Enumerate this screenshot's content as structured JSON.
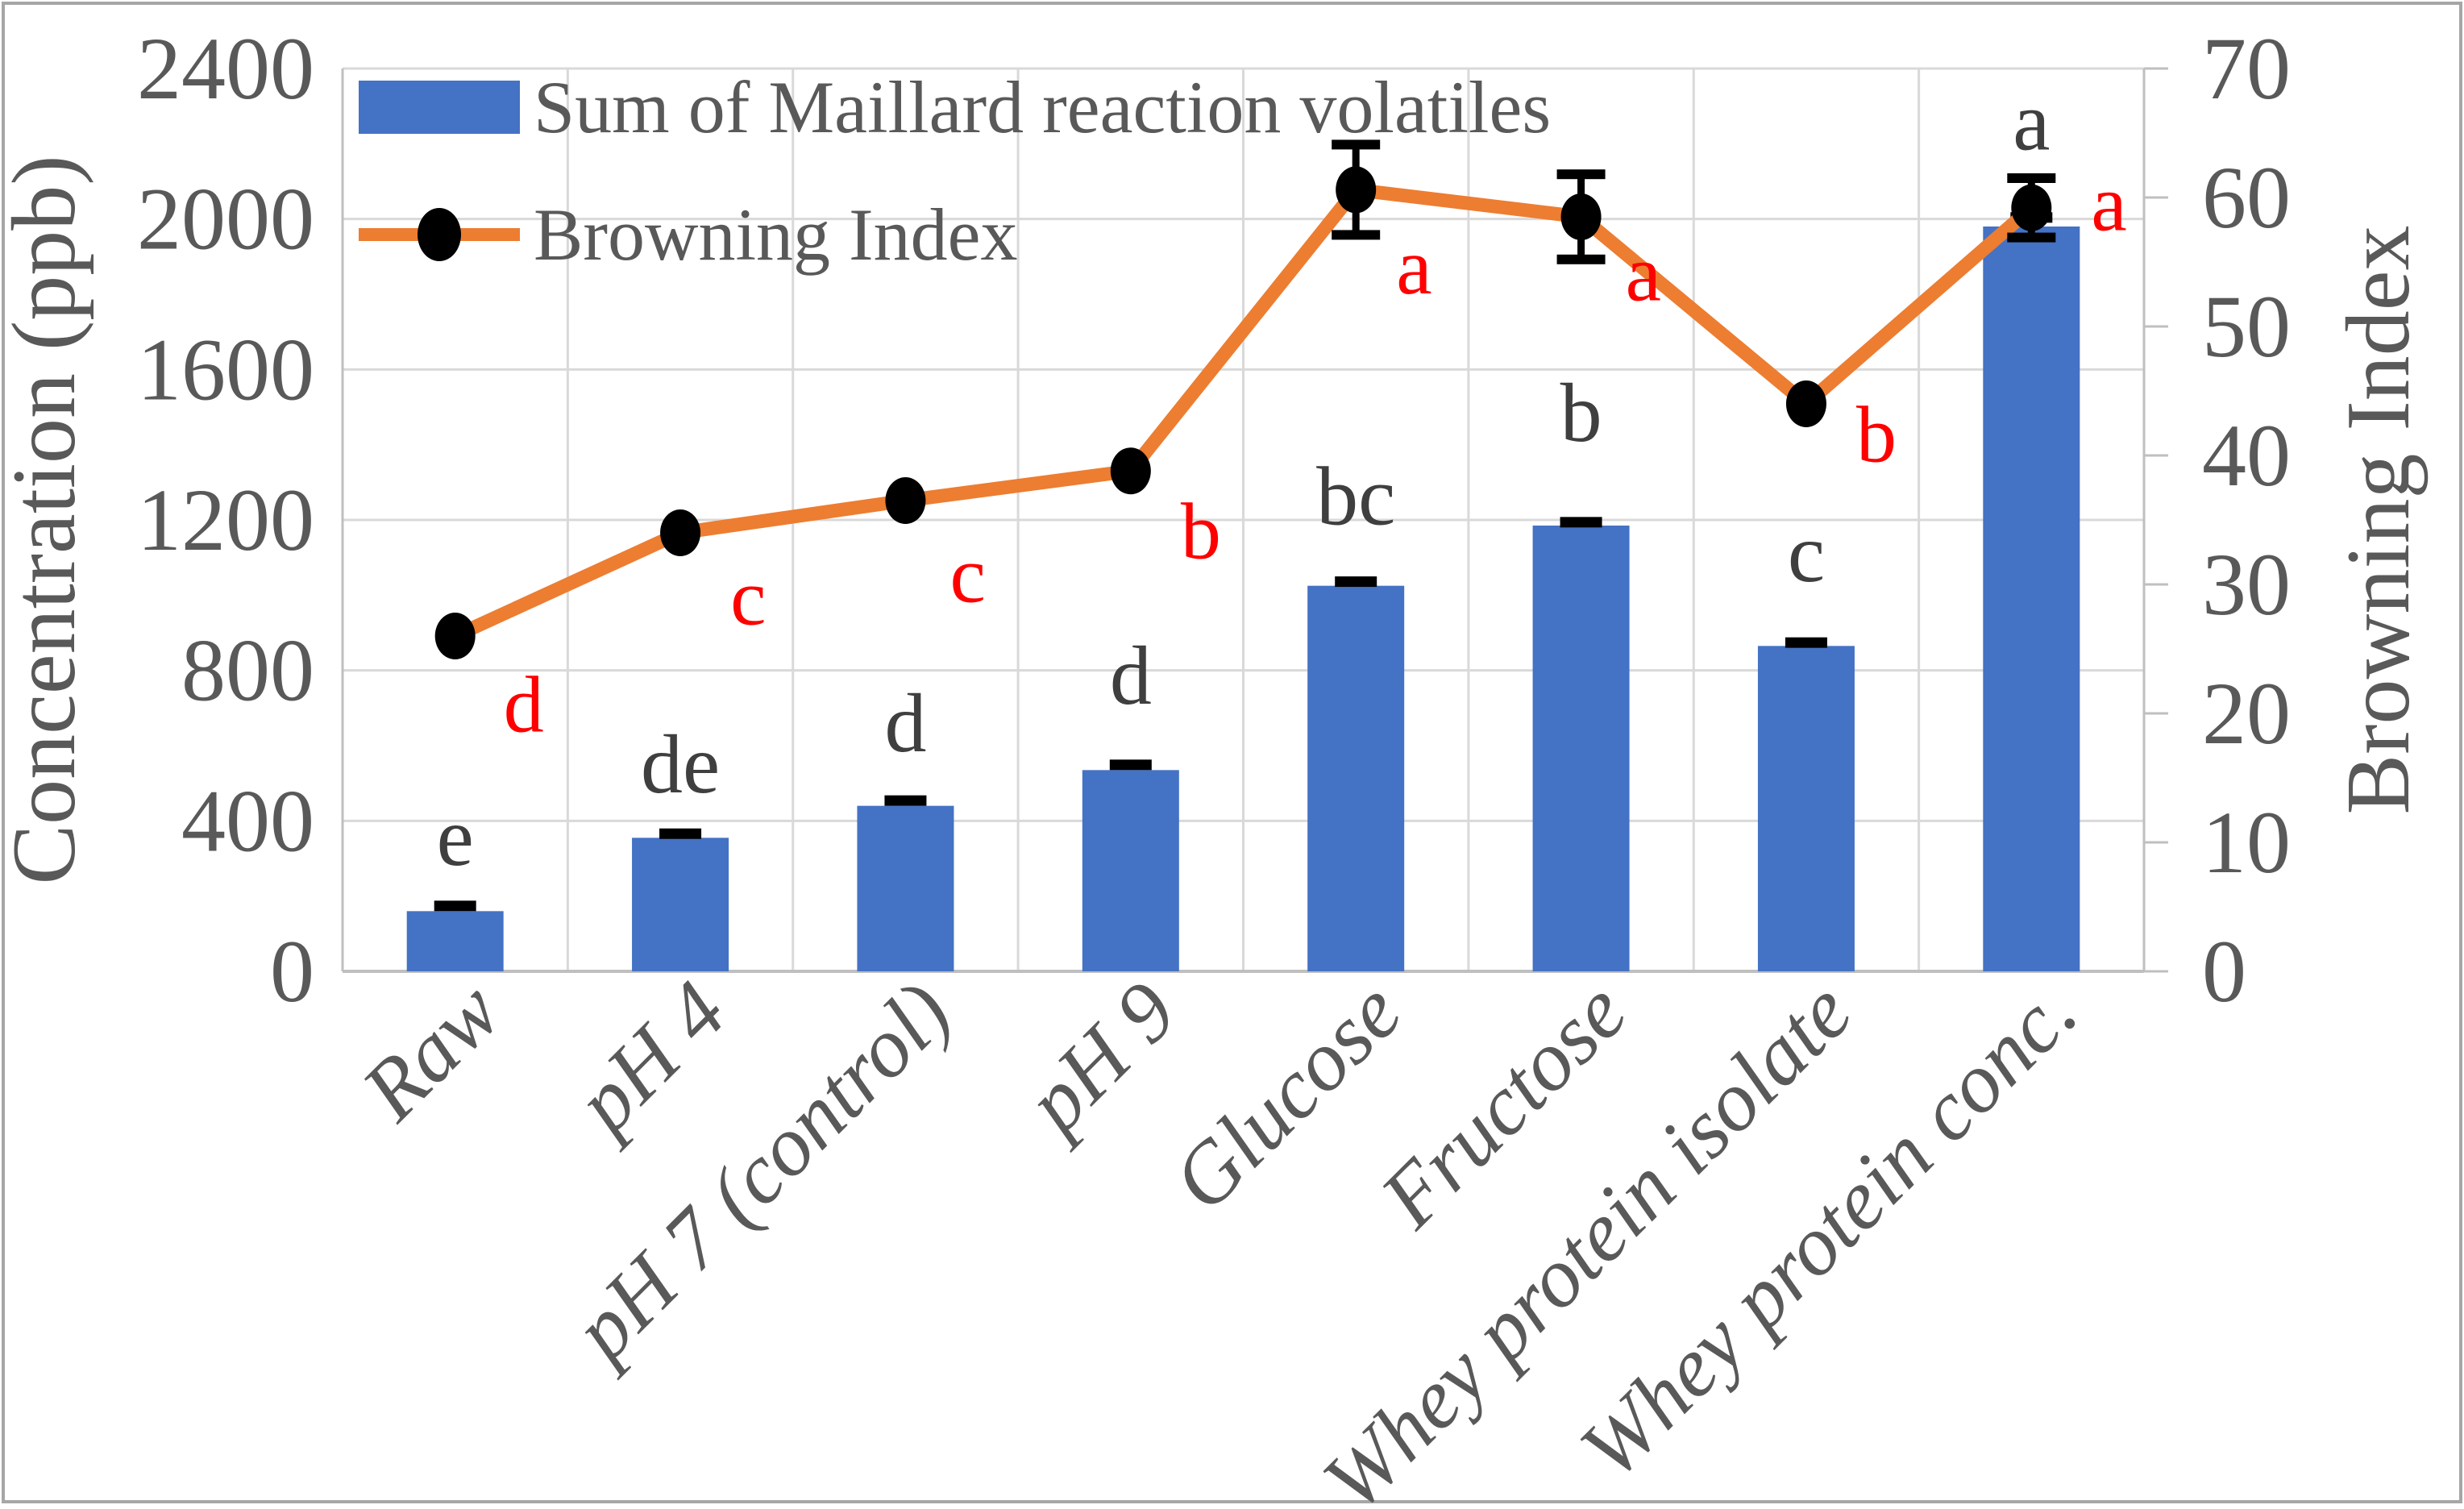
{
  "figure": {
    "background": "#FFFFFF",
    "border_color": "#A6A6A6"
  },
  "legend": {
    "position": "top-left inside plot area",
    "items": [
      {
        "label": "Sum of Maillard reaction volatiles",
        "marker": "bar-swatch",
        "color": "#4472C4"
      },
      {
        "label": "Browning Index",
        "marker": "line-with-filled-circle",
        "line_color": "#ED7D31",
        "marker_color": "#000000"
      }
    ]
  },
  "chart_data": {
    "type": "bar+line combo",
    "categories": [
      "Raw",
      "pH 4",
      "pH 7 (control)",
      "pH 9",
      "Glucose",
      "Fructose",
      "Whey protein isolate",
      "Whey protein conc."
    ],
    "series": [
      {
        "name": "Sum of Maillard reaction volatiles",
        "type": "bar",
        "axis": "left",
        "color": "#4472C4",
        "values": [
          160,
          355,
          440,
          535,
          1025,
          1185,
          865,
          1980
        ],
        "error_bars": [
          15,
          12,
          15,
          15,
          12,
          10,
          10,
          25
        ],
        "significance_letters": [
          "e",
          "de",
          "d",
          "d",
          "bc",
          "b",
          "c",
          "a"
        ],
        "letter_color": "#3F3F3F"
      },
      {
        "name": "Browning Index",
        "type": "line",
        "axis": "right",
        "line_color": "#ED7D31",
        "marker": "filled-circle",
        "marker_color": "#000000",
        "values": [
          26,
          34,
          36.5,
          38.8,
          60.6,
          58.5,
          44,
          59.2
        ],
        "error_bars": [
          0,
          0,
          0,
          0,
          3.5,
          3.3,
          0,
          2.3
        ],
        "significance_letters": [
          "d",
          "c",
          "c",
          "b",
          "a",
          "a",
          "b",
          "a"
        ],
        "letter_color": "#FF0000"
      }
    ],
    "left_axis": {
      "title": "Concentration (ppb)",
      "min": 0,
      "max": 2400,
      "step": 400,
      "tick_labels": [
        "0",
        "400",
        "800",
        "1200",
        "1600",
        "2000",
        "2400"
      ]
    },
    "right_axis": {
      "title": "Browning Index",
      "min": 0,
      "max": 70,
      "step": 10,
      "tick_labels": [
        "0",
        "10",
        "20",
        "30",
        "40",
        "50",
        "60",
        "70"
      ]
    },
    "grid": {
      "horizontal": true,
      "vertical": true,
      "color": "#D9D9D9"
    },
    "text_color": "#595959"
  }
}
